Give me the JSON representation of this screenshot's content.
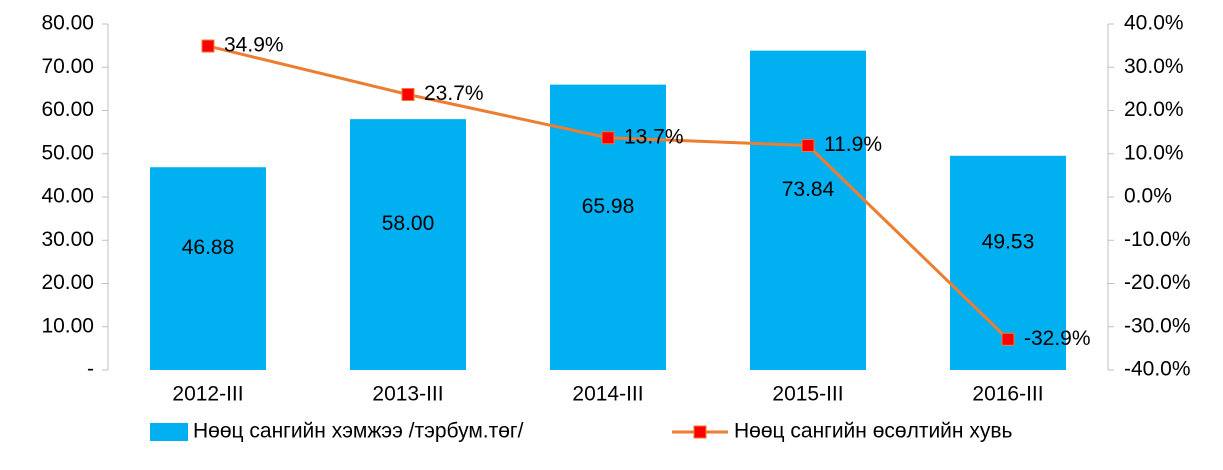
{
  "chart_data": {
    "type": "bar",
    "categories": [
      "2012-III",
      "2013-III",
      "2014-III",
      "2015-III",
      "2016-III"
    ],
    "series": [
      {
        "name": "Нөөц сангийн хэмжээ /тэрбум.төг/",
        "type": "bar",
        "color": "#00b0f0",
        "values": [
          46.88,
          58.0,
          65.98,
          73.84,
          49.53
        ],
        "value_labels": [
          "46.88",
          "58.00",
          "65.98",
          "73.84",
          "49.53"
        ]
      },
      {
        "name": "Нөөц сангийн өсөлтийн хувь",
        "type": "line",
        "axis": "y2",
        "color": "#ed7d31",
        "marker_color": "#ff0000",
        "values": [
          34.9,
          23.7,
          13.7,
          11.9,
          -32.9
        ],
        "value_labels": [
          "34.9%",
          "23.7%",
          "13.7%",
          "11.9%",
          "-32.9%"
        ]
      }
    ],
    "ylim": [
      0,
      80
    ],
    "yticks": [
      {
        "value": 0,
        "label": "-"
      },
      {
        "value": 10,
        "label": "10.00"
      },
      {
        "value": 20,
        "label": "20.00"
      },
      {
        "value": 30,
        "label": "30.00"
      },
      {
        "value": 40,
        "label": "40.00"
      },
      {
        "value": 50,
        "label": "50.00"
      },
      {
        "value": 60,
        "label": "60.00"
      },
      {
        "value": 70,
        "label": "70.00"
      },
      {
        "value": 80,
        "label": "80.00"
      }
    ],
    "y2lim": [
      -40,
      40
    ],
    "y2ticks": [
      {
        "value": -40,
        "label": "-40.0%"
      },
      {
        "value": -30,
        "label": "-30.0%"
      },
      {
        "value": -20,
        "label": "-20.0%"
      },
      {
        "value": -10,
        "label": "-10.0%"
      },
      {
        "value": 0,
        "label": "0.0%"
      },
      {
        "value": 10,
        "label": "10.0%"
      },
      {
        "value": 20,
        "label": "20.0%"
      },
      {
        "value": 30,
        "label": "30.0%"
      },
      {
        "value": 40,
        "label": "40.0%"
      }
    ],
    "grid": false,
    "legend": "bottom"
  }
}
